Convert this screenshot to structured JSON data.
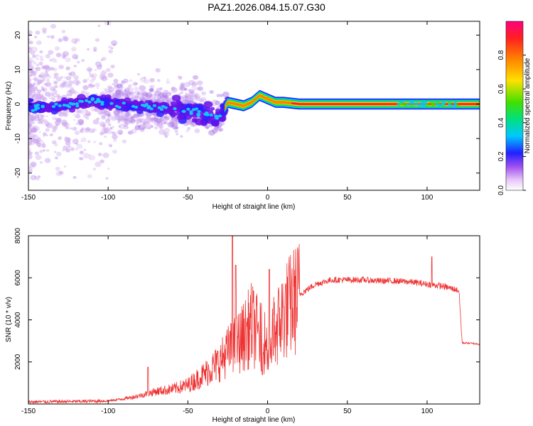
{
  "title": "PAZ1.2026.084.15.07.G30",
  "chart_data": [
    {
      "type": "heatmap",
      "title": "",
      "xlabel": "Height of straight line (km)",
      "ylabel": "Frequency (Hz)",
      "xlim": [
        -150,
        133
      ],
      "ylim": [
        -25,
        24
      ],
      "xticks": [
        -150,
        -100,
        -50,
        0,
        50,
        100
      ],
      "yticks": [
        -20,
        -10,
        0,
        10,
        20
      ],
      "colorbar": {
        "label": "Normalized spectral amplitude",
        "range": [
          0,
          1
        ],
        "ticks": [
          0.0,
          0.2,
          0.4,
          0.6,
          0.8
        ],
        "tick_labels": [
          "0.0",
          "0.2",
          "0.4",
          "0.6",
          "0.8"
        ],
        "colormap": [
          "#ffffff",
          "#d8b0f0",
          "#8a2be2",
          "#2020ff",
          "#00c8ff",
          "#00e080",
          "#40e000",
          "#ffe000",
          "#ff8000",
          "#ff2020",
          "#ff0080"
        ]
      },
      "ridge": {
        "description_points_xy": [
          [
            -148,
            -1
          ],
          [
            -140,
            -1
          ],
          [
            -130,
            -0.5
          ],
          [
            -120,
            0
          ],
          [
            -110,
            1
          ],
          [
            -100,
            0.5
          ],
          [
            -90,
            -0.5
          ],
          [
            -80,
            -0.5
          ],
          [
            -70,
            -1
          ],
          [
            -60,
            -1.5
          ],
          [
            -50,
            -2
          ],
          [
            -40,
            -3
          ],
          [
            -30,
            -4
          ],
          [
            -25,
            0.5
          ],
          [
            -20,
            0
          ],
          [
            -15,
            -0.5
          ],
          [
            -10,
            0.5
          ],
          [
            -5,
            2.5
          ],
          [
            0,
            1.5
          ],
          [
            5,
            0.5
          ],
          [
            10,
            0.5
          ],
          [
            20,
            0
          ],
          [
            60,
            0
          ],
          [
            100,
            0
          ],
          [
            133,
            0
          ]
        ],
        "peak_amplitude_from_x": 15
      }
    },
    {
      "type": "line",
      "title": "",
      "xlabel": "Height of straight line (km)",
      "ylabel": "SNR (10 * v/v)",
      "xlim": [
        -150,
        133
      ],
      "ylim": [
        0,
        8000
      ],
      "xticks": [
        -150,
        -100,
        -50,
        0,
        50,
        100
      ],
      "yticks": [
        2000,
        4000,
        6000,
        8000
      ],
      "color": "#ee3333",
      "envelope": {
        "x": [
          -150,
          -120,
          -100,
          -90,
          -80,
          -70,
          -60,
          -50,
          -40,
          -30,
          -25,
          -20,
          -15,
          -10,
          -5,
          0,
          5,
          10,
          20,
          30,
          40,
          50,
          60,
          70,
          80,
          90,
          100,
          110,
          120,
          122,
          125,
          133
        ],
        "y": [
          100,
          120,
          150,
          250,
          400,
          600,
          700,
          900,
          1400,
          2000,
          2500,
          2800,
          3200,
          3800,
          3200,
          2800,
          3500,
          4300,
          5200,
          5700,
          5900,
          5900,
          5900,
          5850,
          5850,
          5800,
          5700,
          5600,
          5400,
          2900,
          2900,
          2850
        ]
      },
      "spikes": [
        {
          "x": -75,
          "y": 1750
        },
        {
          "x": -22,
          "y": 8000
        },
        {
          "x": -20,
          "y": 6600
        },
        {
          "x": 1,
          "y": 6400
        },
        {
          "x": 103,
          "y": 7000
        }
      ]
    }
  ]
}
